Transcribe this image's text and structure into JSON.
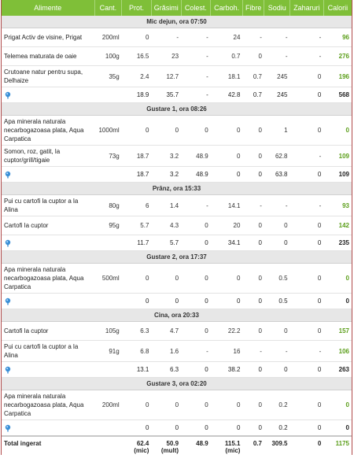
{
  "headers": {
    "food": "Alimente",
    "qty": "Cant.",
    "prot": "Prot.",
    "fat": "Grăsimi",
    "chol": "Colest.",
    "carb": "Carboh.",
    "fib": "Fibre",
    "sod": "Sodiu",
    "sug": "Zaharuri",
    "cal": "Calorii"
  },
  "meals": [
    {
      "title": "Mic dejun, ora 07:50",
      "items": [
        {
          "name": "Prigat Activ de visine, Prigat",
          "qty": "200ml",
          "prot": "0",
          "fat": "-",
          "chol": "-",
          "carb": "24",
          "fib": "-",
          "sod": "-",
          "sug": "-",
          "cal": "96"
        },
        {
          "name": "Telemea maturata de oaie",
          "qty": "100g",
          "prot": "16.5",
          "fat": "23",
          "chol": "-",
          "carb": "0.7",
          "fib": "0",
          "sod": "-",
          "sug": "-",
          "cal": "276"
        },
        {
          "name": "Crutoane natur pentru supa, Delhaize",
          "qty": "35g",
          "prot": "2.4",
          "fat": "12.7",
          "chol": "-",
          "carb": "18.1",
          "fib": "0.7",
          "sod": "245",
          "sug": "0",
          "cal": "196"
        }
      ],
      "subtotal": {
        "prot": "18.9",
        "fat": "35.7",
        "chol": "-",
        "carb": "42.8",
        "fib": "0.7",
        "sod": "245",
        "sug": "0",
        "cal": "568"
      }
    },
    {
      "title": "Gustare 1, ora 08:26",
      "items": [
        {
          "name": "Apa minerala naturala necarbogazoasa plata, Aqua Carpatica",
          "qty": "1000ml",
          "prot": "0",
          "fat": "0",
          "chol": "0",
          "carb": "0",
          "fib": "0",
          "sod": "1",
          "sug": "0",
          "cal": "0"
        },
        {
          "name": "Somon, roz, gatit, la cuptor/grill/tigaie",
          "qty": "73g",
          "prot": "18.7",
          "fat": "3.2",
          "chol": "48.9",
          "carb": "0",
          "fib": "0",
          "sod": "62.8",
          "sug": "-",
          "cal": "109"
        }
      ],
      "subtotal": {
        "prot": "18.7",
        "fat": "3.2",
        "chol": "48.9",
        "carb": "0",
        "fib": "0",
        "sod": "63.8",
        "sug": "0",
        "cal": "109"
      }
    },
    {
      "title": "Prânz, ora 15:33",
      "items": [
        {
          "name": "Pui cu cartofi la cuptor a la Alina",
          "qty": "80g",
          "prot": "6",
          "fat": "1.4",
          "chol": "-",
          "carb": "14.1",
          "fib": "-",
          "sod": "-",
          "sug": "-",
          "cal": "93"
        },
        {
          "name": "Cartofi la cuptor",
          "qty": "95g",
          "prot": "5.7",
          "fat": "4.3",
          "chol": "0",
          "carb": "20",
          "fib": "0",
          "sod": "0",
          "sug": "0",
          "cal": "142"
        }
      ],
      "subtotal": {
        "prot": "11.7",
        "fat": "5.7",
        "chol": "0",
        "carb": "34.1",
        "fib": "0",
        "sod": "0",
        "sug": "0",
        "cal": "235"
      }
    },
    {
      "title": "Gustare 2, ora 17:37",
      "items": [
        {
          "name": "Apa minerala naturala necarbogazoasa plata, Aqua Carpatica",
          "qty": "500ml",
          "prot": "0",
          "fat": "0",
          "chol": "0",
          "carb": "0",
          "fib": "0",
          "sod": "0.5",
          "sug": "0",
          "cal": "0"
        }
      ],
      "subtotal": {
        "prot": "0",
        "fat": "0",
        "chol": "0",
        "carb": "0",
        "fib": "0",
        "sod": "0.5",
        "sug": "0",
        "cal": "0"
      }
    },
    {
      "title": "Cina, ora 20:33",
      "items": [
        {
          "name": "Cartofi la cuptor",
          "qty": "105g",
          "prot": "6.3",
          "fat": "4.7",
          "chol": "0",
          "carb": "22.2",
          "fib": "0",
          "sod": "0",
          "sug": "0",
          "cal": "157"
        },
        {
          "name": "Pui cu cartofi la cuptor a la Alina",
          "qty": "91g",
          "prot": "6.8",
          "fat": "1.6",
          "chol": "-",
          "carb": "16",
          "fib": "-",
          "sod": "-",
          "sug": "-",
          "cal": "106"
        }
      ],
      "subtotal": {
        "prot": "13.1",
        "fat": "6.3",
        "chol": "0",
        "carb": "38.2",
        "fib": "0",
        "sod": "0",
        "sug": "0",
        "cal": "263"
      }
    },
    {
      "title": "Gustare 3, ora 02:20",
      "items": [
        {
          "name": "Apa minerala naturala necarbogazoasa plata, Aqua Carpatica",
          "qty": "200ml",
          "prot": "0",
          "fat": "0",
          "chol": "0",
          "carb": "0",
          "fib": "0",
          "sod": "0.2",
          "sug": "0",
          "cal": "0"
        }
      ],
      "subtotal": {
        "prot": "0",
        "fat": "0",
        "chol": "0",
        "carb": "0",
        "fib": "0",
        "sod": "0.2",
        "sug": "0",
        "cal": "0"
      }
    }
  ],
  "total": {
    "label": "Total ingerat",
    "prot": "62.4",
    "prot_note": "(mic)",
    "fat": "50.9",
    "fat_note": "(mult)",
    "chol": "48.9",
    "carb": "115.1",
    "carb_note": "(mic)",
    "fib": "0.7",
    "sod": "309.5",
    "sug": "0",
    "cal": "1175"
  },
  "icons": {
    "subtotal_marker": "pin-icon"
  },
  "colors": {
    "header_bg": "#7fbf38",
    "calorie_text": "#5b9e1a",
    "meal_row_bg": "#e7e7e7",
    "frame_border": "#b04a4a"
  }
}
